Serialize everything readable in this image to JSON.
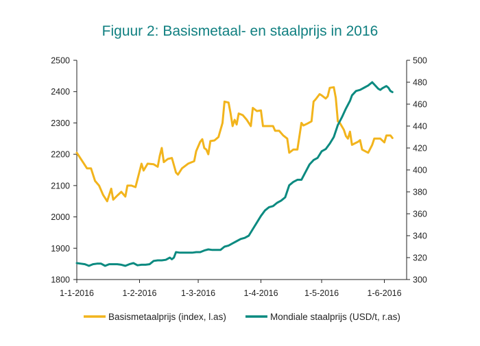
{
  "chart_data": {
    "type": "line",
    "title": "Figuur 2: Basismetaal- en staalprijs in 2016",
    "xlabel": "",
    "x_ticks": [
      "1-1-2016",
      "1-2-2016",
      "1-3-2016",
      "1-4-2016",
      "1-5-2016",
      "1-6-2016"
    ],
    "x_range": [
      "2016-01-01",
      "2016-06-12"
    ],
    "y_left": {
      "range": [
        1800,
        2500
      ],
      "ticks": [
        1800,
        1900,
        2000,
        2100,
        2200,
        2300,
        2400,
        2500
      ]
    },
    "y_right": {
      "range": [
        300,
        500
      ],
      "ticks": [
        300,
        320,
        340,
        360,
        380,
        400,
        420,
        440,
        460,
        480,
        500
      ]
    },
    "grid": false,
    "legend_position": "bottom",
    "series": [
      {
        "name": "Basismetaalprijs (index, l.as)",
        "axis": "left",
        "color": "#f2b41c",
        "points": [
          [
            "2016-01-01",
            2205
          ],
          [
            "2016-01-04",
            2175
          ],
          [
            "2016-01-06",
            2155
          ],
          [
            "2016-01-08",
            2155
          ],
          [
            "2016-01-10",
            2115
          ],
          [
            "2016-01-12",
            2100
          ],
          [
            "2016-01-14",
            2070
          ],
          [
            "2016-01-16",
            2050
          ],
          [
            "2016-01-18",
            2090
          ],
          [
            "2016-01-19",
            2055
          ],
          [
            "2016-01-21",
            2068
          ],
          [
            "2016-01-23",
            2080
          ],
          [
            "2016-01-25",
            2065
          ],
          [
            "2016-01-26",
            2100
          ],
          [
            "2016-01-28",
            2100
          ],
          [
            "2016-01-30",
            2095
          ],
          [
            "2016-02-02",
            2170
          ],
          [
            "2016-02-03",
            2148
          ],
          [
            "2016-02-05",
            2170
          ],
          [
            "2016-02-08",
            2168
          ],
          [
            "2016-02-10",
            2160
          ],
          [
            "2016-02-11",
            2195
          ],
          [
            "2016-02-12",
            2220
          ],
          [
            "2016-02-13",
            2175
          ],
          [
            "2016-02-15",
            2185
          ],
          [
            "2016-02-17",
            2188
          ],
          [
            "2016-02-19",
            2142
          ],
          [
            "2016-02-20",
            2135
          ],
          [
            "2016-02-22",
            2155
          ],
          [
            "2016-02-25",
            2170
          ],
          [
            "2016-02-28",
            2178
          ],
          [
            "2016-02-29",
            2210
          ],
          [
            "2016-03-02",
            2240
          ],
          [
            "2016-03-03",
            2248
          ],
          [
            "2016-03-04",
            2220
          ],
          [
            "2016-03-05",
            2215
          ],
          [
            "2016-03-06",
            2200
          ],
          [
            "2016-03-07",
            2242
          ],
          [
            "2016-03-09",
            2244
          ],
          [
            "2016-03-11",
            2255
          ],
          [
            "2016-03-13",
            2300
          ],
          [
            "2016-03-14",
            2368
          ],
          [
            "2016-03-16",
            2365
          ],
          [
            "2016-03-17",
            2330
          ],
          [
            "2016-03-18",
            2290
          ],
          [
            "2016-03-19",
            2310
          ],
          [
            "2016-03-20",
            2295
          ],
          [
            "2016-03-21",
            2330
          ],
          [
            "2016-03-23",
            2325
          ],
          [
            "2016-03-25",
            2310
          ],
          [
            "2016-03-27",
            2290
          ],
          [
            "2016-03-28",
            2348
          ],
          [
            "2016-03-30",
            2338
          ],
          [
            "2016-04-01",
            2340
          ],
          [
            "2016-04-02",
            2290
          ],
          [
            "2016-04-05",
            2290
          ],
          [
            "2016-04-07",
            2290
          ],
          [
            "2016-04-08",
            2275
          ],
          [
            "2016-04-10",
            2275
          ],
          [
            "2016-04-12",
            2260
          ],
          [
            "2016-04-14",
            2250
          ],
          [
            "2016-04-15",
            2205
          ],
          [
            "2016-04-17",
            2215
          ],
          [
            "2016-04-19",
            2215
          ],
          [
            "2016-04-21",
            2300
          ],
          [
            "2016-04-22",
            2292
          ],
          [
            "2016-04-24",
            2298
          ],
          [
            "2016-04-26",
            2305
          ],
          [
            "2016-04-27",
            2368
          ],
          [
            "2016-04-28",
            2375
          ],
          [
            "2016-04-30",
            2392
          ],
          [
            "2016-05-01",
            2388
          ],
          [
            "2016-05-03",
            2378
          ],
          [
            "2016-05-04",
            2385
          ],
          [
            "2016-05-05",
            2412
          ],
          [
            "2016-05-07",
            2414
          ],
          [
            "2016-05-08",
            2380
          ],
          [
            "2016-05-09",
            2305
          ],
          [
            "2016-05-10",
            2300
          ],
          [
            "2016-05-12",
            2278
          ],
          [
            "2016-05-13",
            2258
          ],
          [
            "2016-05-14",
            2250
          ],
          [
            "2016-05-15",
            2272
          ],
          [
            "2016-05-16",
            2230
          ],
          [
            "2016-05-19",
            2240
          ],
          [
            "2016-05-20",
            2245
          ],
          [
            "2016-05-21",
            2215
          ],
          [
            "2016-05-24",
            2205
          ],
          [
            "2016-05-26",
            2230
          ],
          [
            "2016-05-27",
            2250
          ],
          [
            "2016-05-30",
            2250
          ],
          [
            "2016-06-01",
            2238
          ],
          [
            "2016-06-02",
            2260
          ],
          [
            "2016-06-04",
            2260
          ],
          [
            "2016-06-05",
            2252
          ]
        ]
      },
      {
        "name": "Mondiale staalprijs (USD/t, r.as)",
        "axis": "right",
        "color": "#0b8a80",
        "points": [
          [
            "2016-01-01",
            315
          ],
          [
            "2016-01-03",
            314.5
          ],
          [
            "2016-01-05",
            314
          ],
          [
            "2016-01-07",
            312.5
          ],
          [
            "2016-01-09",
            314
          ],
          [
            "2016-01-11",
            314.5
          ],
          [
            "2016-01-13",
            314.5
          ],
          [
            "2016-01-15",
            312.5
          ],
          [
            "2016-01-17",
            314
          ],
          [
            "2016-01-19",
            314
          ],
          [
            "2016-01-21",
            314
          ],
          [
            "2016-01-23",
            313.5
          ],
          [
            "2016-01-25",
            312.5
          ],
          [
            "2016-01-27",
            314
          ],
          [
            "2016-01-29",
            315
          ],
          [
            "2016-01-31",
            313
          ],
          [
            "2016-02-02",
            313.5
          ],
          [
            "2016-02-04",
            313.5
          ],
          [
            "2016-02-06",
            314
          ],
          [
            "2016-02-08",
            317
          ],
          [
            "2016-02-10",
            317.5
          ],
          [
            "2016-02-12",
            317.5
          ],
          [
            "2016-02-14",
            318
          ],
          [
            "2016-02-16",
            320
          ],
          [
            "2016-02-17",
            318.5
          ],
          [
            "2016-02-18",
            320
          ],
          [
            "2016-02-19",
            325
          ],
          [
            "2016-02-21",
            324.5
          ],
          [
            "2016-02-23",
            324.5
          ],
          [
            "2016-02-25",
            324.5
          ],
          [
            "2016-02-27",
            324.5
          ],
          [
            "2016-02-29",
            325
          ],
          [
            "2016-03-02",
            325
          ],
          [
            "2016-03-04",
            326.5
          ],
          [
            "2016-03-06",
            327.5
          ],
          [
            "2016-03-08",
            327
          ],
          [
            "2016-03-10",
            327
          ],
          [
            "2016-03-12",
            327
          ],
          [
            "2016-03-14",
            330
          ],
          [
            "2016-03-16",
            331
          ],
          [
            "2016-03-18",
            333
          ],
          [
            "2016-03-20",
            335
          ],
          [
            "2016-03-22",
            337
          ],
          [
            "2016-03-24",
            338
          ],
          [
            "2016-03-26",
            340
          ],
          [
            "2016-03-28",
            346
          ],
          [
            "2016-03-30",
            352
          ],
          [
            "2016-04-01",
            358
          ],
          [
            "2016-04-03",
            363
          ],
          [
            "2016-04-05",
            366
          ],
          [
            "2016-04-07",
            367
          ],
          [
            "2016-04-09",
            370
          ],
          [
            "2016-04-11",
            372
          ],
          [
            "2016-04-13",
            375
          ],
          [
            "2016-04-15",
            386
          ],
          [
            "2016-04-17",
            389
          ],
          [
            "2016-04-19",
            391
          ],
          [
            "2016-04-21",
            391
          ],
          [
            "2016-04-23",
            398
          ],
          [
            "2016-04-25",
            405
          ],
          [
            "2016-04-27",
            409
          ],
          [
            "2016-04-29",
            411
          ],
          [
            "2016-05-01",
            417
          ],
          [
            "2016-05-03",
            419
          ],
          [
            "2016-05-05",
            424
          ],
          [
            "2016-05-07",
            430
          ],
          [
            "2016-05-09",
            441
          ],
          [
            "2016-05-11",
            448
          ],
          [
            "2016-05-13",
            456
          ],
          [
            "2016-05-15",
            463
          ],
          [
            "2016-05-16",
            468
          ],
          [
            "2016-05-18",
            472
          ],
          [
            "2016-05-20",
            473
          ],
          [
            "2016-05-22",
            475
          ],
          [
            "2016-05-24",
            477
          ],
          [
            "2016-05-26",
            480
          ],
          [
            "2016-05-28",
            476
          ],
          [
            "2016-05-29",
            474
          ],
          [
            "2016-05-30",
            473
          ],
          [
            "2016-05-31",
            474.5
          ],
          [
            "2016-06-01",
            475.5
          ],
          [
            "2016-06-02",
            476.5
          ],
          [
            "2016-06-03",
            475
          ],
          [
            "2016-06-04",
            472
          ],
          [
            "2016-06-05",
            471
          ]
        ]
      }
    ]
  }
}
